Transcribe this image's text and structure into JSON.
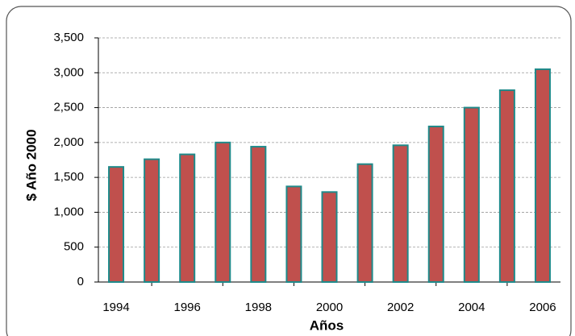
{
  "chart_data": {
    "type": "bar",
    "x_label": "Años",
    "y_label": "$ Año 2000",
    "categories": [
      "1994",
      null,
      "1996",
      null,
      "1998",
      null,
      "2000",
      null,
      "2002",
      null,
      "2004",
      null,
      "2006"
    ],
    "values": [
      1650,
      1760,
      1830,
      2000,
      1940,
      1370,
      1290,
      1690,
      1960,
      2230,
      2500,
      2750,
      3050
    ],
    "color": "#c0504d",
    "edge_color": "#1f8a8a",
    "ylim": [
      0,
      3500
    ],
    "yticks": [
      0,
      500,
      {
        "value": 1000,
        "label": "1,000"
      },
      {
        "value": 1500,
        "label": "1,500"
      },
      {
        "value": 2000,
        "label": "2,000"
      },
      {
        "value": 2500,
        "label": "2,500"
      },
      {
        "value": 3000,
        "label": "3,000"
      },
      {
        "value": 3500,
        "label": "3,500"
      }
    ],
    "grid": true
  }
}
